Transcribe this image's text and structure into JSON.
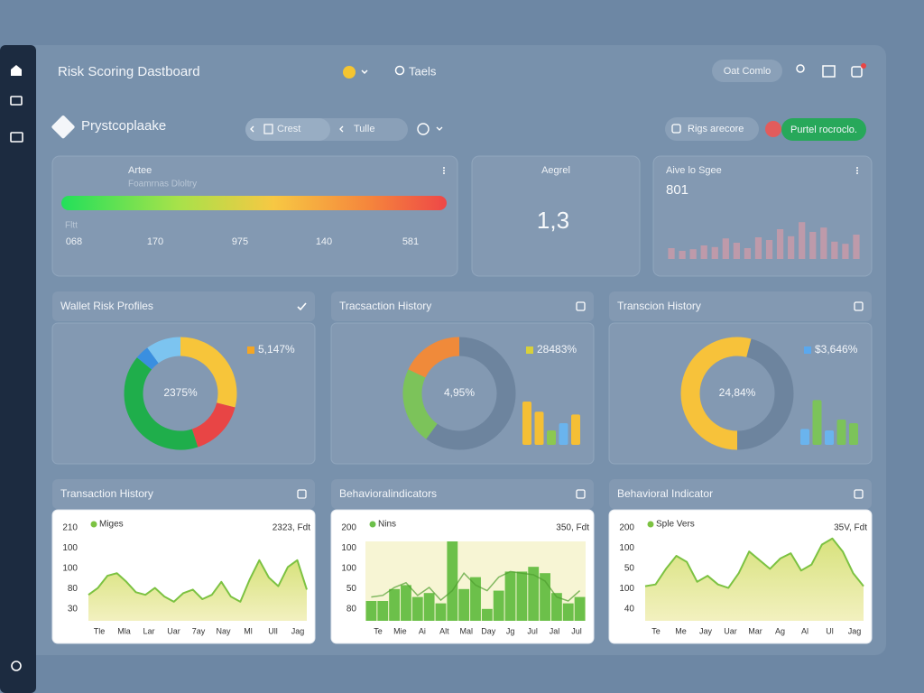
{
  "header": {
    "title": "Risk Scoring Dastboard",
    "nav": "Taels",
    "button": "Oat Comlo"
  },
  "toolbar": {
    "brand": "Prystcoplaake",
    "tabs": [
      "Crest",
      "Tulle"
    ],
    "score_button": "Rigs arecore",
    "action_button": "Purtel rocroclo."
  },
  "cards": [
    {
      "title": "Artee",
      "subtitle": "Foamrnas Dloltry",
      "label": "Fltt",
      "scale": [
        "068",
        "170",
        "975",
        "140",
        "581"
      ]
    },
    {
      "title": "Aegrel",
      "value": "1,3"
    },
    {
      "title": "Aive lo Sgee",
      "value": "801",
      "chart": {
        "type": "bar",
        "color": "#c99aa8",
        "ylim": [
          0,
          100
        ],
        "values": [
          20,
          15,
          18,
          25,
          22,
          38,
          30,
          20,
          40,
          35,
          55,
          42,
          68,
          50,
          58,
          32,
          28,
          45
        ]
      }
    }
  ],
  "panels": [
    {
      "title": "Wallet Risk Profiles",
      "chart": {
        "type": "donut",
        "center_label": "2375%",
        "legend": "5,147%",
        "legend_color": "#f5a623",
        "values": [
          29,
          16,
          41,
          4,
          10
        ],
        "colors": [
          "#f7c53a",
          "#e84545",
          "#1fae4b",
          "#3a8fe0",
          "#7cc4f0"
        ]
      }
    },
    {
      "title": "Tracsaction History",
      "chart": {
        "type": "donut",
        "center_label": "4,95%",
        "legend": "28483%",
        "legend_color": "#d8d03a",
        "values": [
          60,
          22,
          18
        ],
        "colors": [
          "#6d849e",
          "#7cc35a",
          "#f08a3a"
        ],
        "bars": {
          "ylim": [
            0,
            100
          ],
          "values": [
            60,
            46,
            20,
            30,
            42
          ],
          "colors": [
            "#f5bf35",
            "#f5bf35",
            "#8cc850",
            "#6ab4ee",
            "#f5bf35"
          ]
        }
      }
    },
    {
      "title": "Transcion History",
      "chart": {
        "type": "donut",
        "center_label": "24,84%",
        "legend": "$3,646%",
        "legend_color": "#5aa8ee",
        "values": [
          4,
          46,
          50
        ],
        "colors": [
          "#f7c23a",
          "#6d849e",
          "#f7c23a"
        ],
        "bars": {
          "ylim": [
            0,
            100
          ],
          "values": [
            22,
            62,
            20,
            35,
            30
          ],
          "colors": [
            "#6ab4ee",
            "#7cc35a",
            "#6ab4ee",
            "#7cc35a",
            "#7cc35a"
          ]
        }
      }
    },
    {
      "title": "Transaction History",
      "chart": {
        "type": "area",
        "legend": "Miges",
        "note": "2323, Fdt",
        "color": "#7cc242",
        "ylim": [
          0,
          100
        ],
        "y_labels": [
          "210",
          "100",
          "100",
          "80",
          "30"
        ],
        "x_labels": [
          "Tle",
          "Mla",
          "Lar",
          "Uar",
          "7ay",
          "Nay",
          "Ml",
          "Ull",
          "Jag"
        ],
        "values": [
          30,
          38,
          52,
          55,
          45,
          33,
          30,
          38,
          28,
          22,
          32,
          36,
          25,
          30,
          45,
          28,
          22,
          48,
          70,
          50,
          40,
          62,
          70,
          36
        ]
      }
    },
    {
      "title": "Behavioralindicators",
      "chart": {
        "type": "bar_line",
        "legend": "Nins",
        "note": "350, Fdt",
        "color": "#6cc04a",
        "ylim": [
          0,
          100
        ],
        "y_labels": [
          "200",
          "100",
          "100",
          "50",
          "80"
        ],
        "x_labels": [
          "Te",
          "Mie",
          "Ai",
          "Alt",
          "Mal",
          "Day",
          "Jg",
          "Jul",
          "Jal",
          "Jul"
        ],
        "values": [
          25,
          25,
          40,
          45,
          30,
          35,
          22,
          100,
          40,
          55,
          15,
          38,
          62,
          62,
          68,
          60,
          35,
          22,
          30
        ],
        "line": [
          30,
          32,
          42,
          48,
          32,
          42,
          26,
          38,
          60,
          45,
          38,
          55,
          62,
          60,
          58,
          50,
          30,
          25,
          38
        ]
      }
    },
    {
      "title": "Behavioral Indicator",
      "chart": {
        "type": "area",
        "legend": "Sple Vers",
        "note": "35V, Fdt",
        "color": "#7cc242",
        "ylim": [
          0,
          100
        ],
        "y_labels": [
          "200",
          "100",
          "50",
          "100",
          "40"
        ],
        "x_labels": [
          "Te",
          "Me",
          "Jay",
          "Uar",
          "Mar",
          "Ag",
          "Al",
          "Ul",
          "Jag"
        ],
        "values": [
          40,
          42,
          60,
          75,
          68,
          45,
          52,
          42,
          38,
          55,
          80,
          70,
          60,
          72,
          78,
          58,
          65,
          88,
          95,
          80,
          55,
          40
        ]
      }
    }
  ]
}
